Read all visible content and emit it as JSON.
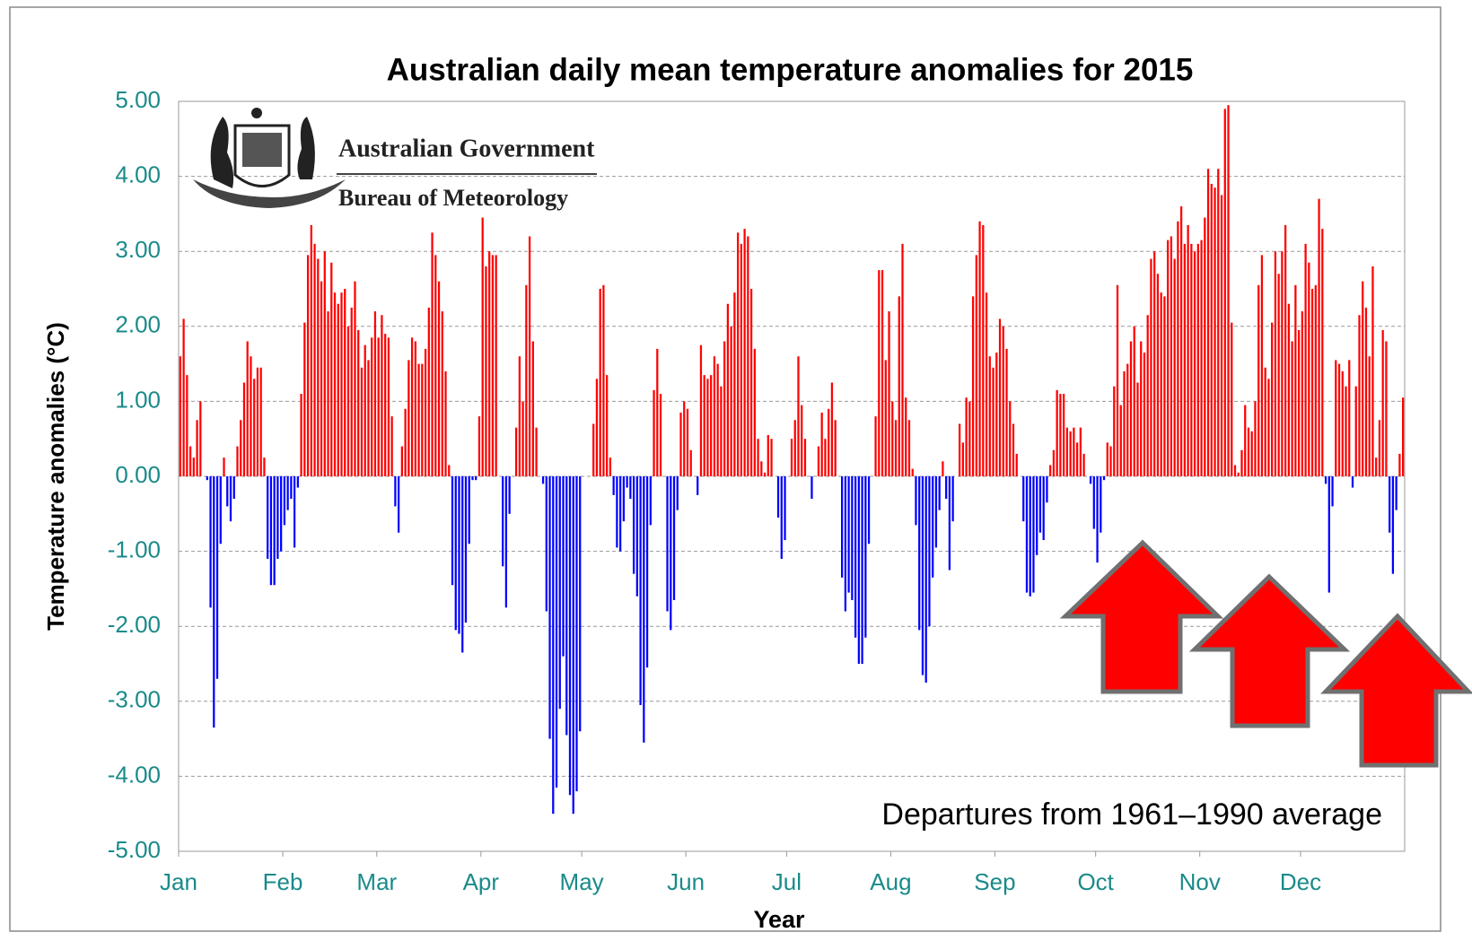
{
  "chart_data": {
    "type": "bar",
    "title": "Australian daily mean temperature anomalies for 2015",
    "ylabel": "Temperature anomalies (°C)",
    "xlabel": "Year",
    "annotation": "Departures from 1961–1990 average",
    "logo_text": [
      "Australian Government",
      "Bureau of Meteorology"
    ],
    "positive_color": "#ff0000",
    "negative_color": "#0000ff",
    "grid": true,
    "xlim": [
      1,
      366
    ],
    "xticks": [
      {
        "value": 1,
        "label": "Jan"
      },
      {
        "value": 32,
        "label": "Feb"
      },
      {
        "value": 60,
        "label": "Mar"
      },
      {
        "value": 91,
        "label": "Apr"
      },
      {
        "value": 121,
        "label": "May"
      },
      {
        "value": 152,
        "label": "Jun"
      },
      {
        "value": 182,
        "label": "Jul"
      },
      {
        "value": 213,
        "label": "Aug"
      },
      {
        "value": 244,
        "label": "Sep"
      },
      {
        "value": 274,
        "label": "Oct"
      },
      {
        "value": 305,
        "label": "Nov"
      },
      {
        "value": 335,
        "label": "Dec"
      }
    ],
    "ylim": [
      -5,
      5
    ],
    "yticks": [
      {
        "value": -5,
        "label": "-5.00"
      },
      {
        "value": -4,
        "label": "-4.00"
      },
      {
        "value": -3,
        "label": "-3.00"
      },
      {
        "value": -2,
        "label": "-2.00"
      },
      {
        "value": -1,
        "label": "-1.00"
      },
      {
        "value": 0,
        "label": "0.00"
      },
      {
        "value": 1,
        "label": "1.00"
      },
      {
        "value": 2,
        "label": "2.00"
      },
      {
        "value": 3,
        "label": "3.00"
      },
      {
        "value": 4,
        "label": "4.00"
      },
      {
        "value": 5,
        "label": "5.00"
      }
    ],
    "x": [
      1,
      2,
      3,
      4,
      5,
      6,
      7,
      8,
      9,
      10,
      11,
      12,
      13,
      14,
      15,
      16,
      17,
      18,
      19,
      20,
      21,
      22,
      23,
      24,
      25,
      26,
      27,
      28,
      29,
      30,
      31,
      32,
      33,
      34,
      35,
      36,
      37,
      38,
      39,
      40,
      41,
      42,
      43,
      44,
      45,
      46,
      47,
      48,
      49,
      50,
      51,
      52,
      53,
      54,
      55,
      56,
      57,
      58,
      59,
      60,
      61,
      62,
      63,
      64,
      65,
      66,
      67,
      68,
      69,
      70,
      71,
      72,
      73,
      74,
      75,
      76,
      77,
      78,
      79,
      80,
      81,
      82,
      83,
      84,
      85,
      86,
      87,
      88,
      89,
      90,
      91,
      92,
      93,
      94,
      95,
      96,
      97,
      98,
      99,
      100,
      101,
      102,
      103,
      104,
      105,
      106,
      107,
      108,
      109,
      110,
      111,
      112,
      113,
      114,
      115,
      116,
      117,
      118,
      119,
      120,
      121,
      122,
      123,
      124,
      125,
      126,
      127,
      128,
      129,
      130,
      131,
      132,
      133,
      134,
      135,
      136,
      137,
      138,
      139,
      140,
      141,
      142,
      143,
      144,
      145,
      146,
      147,
      148,
      149,
      150,
      151,
      152,
      153,
      154,
      155,
      156,
      157,
      158,
      159,
      160,
      161,
      162,
      163,
      164,
      165,
      166,
      167,
      168,
      169,
      170,
      171,
      172,
      173,
      174,
      175,
      176,
      177,
      178,
      179,
      180,
      181,
      182,
      183,
      184,
      185,
      186,
      187,
      188,
      189,
      190,
      191,
      192,
      193,
      194,
      195,
      196,
      197,
      198,
      199,
      200,
      201,
      202,
      203,
      204,
      205,
      206,
      207,
      208,
      209,
      210,
      211,
      212,
      213,
      214,
      215,
      216,
      217,
      218,
      219,
      220,
      221,
      222,
      223,
      224,
      225,
      226,
      227,
      228,
      229,
      230,
      231,
      232,
      233,
      234,
      235,
      236,
      237,
      238,
      239,
      240,
      241,
      242,
      243,
      244,
      245,
      246,
      247,
      248,
      249,
      250,
      251,
      252,
      253,
      254,
      255,
      256,
      257,
      258,
      259,
      260,
      261,
      262,
      263,
      264,
      265,
      266,
      267,
      268,
      269,
      270,
      271,
      272,
      273,
      274,
      275,
      276,
      277,
      278,
      279,
      280,
      281,
      282,
      283,
      284,
      285,
      286,
      287,
      288,
      289,
      290,
      291,
      292,
      293,
      294,
      295,
      296,
      297,
      298,
      299,
      300,
      301,
      302,
      303,
      304,
      305,
      306,
      307,
      308,
      309,
      310,
      311,
      312,
      313,
      314,
      315,
      316,
      317,
      318,
      319,
      320,
      321,
      322,
      323,
      324,
      325,
      326,
      327,
      328,
      329,
      330,
      331,
      332,
      333,
      334,
      335,
      336,
      337,
      338,
      339,
      340,
      341,
      342,
      343,
      344,
      345,
      346,
      347,
      348,
      349,
      350,
      351,
      352,
      353,
      354,
      355,
      356,
      357,
      358,
      359,
      360,
      361,
      362,
      363,
      364,
      365
    ],
    "values": [
      1.6,
      2.1,
      1.35,
      0.4,
      0.25,
      0.75,
      1.0,
      0,
      -0.05,
      -1.75,
      -3.35,
      -2.7,
      -0.9,
      0.25,
      -0.4,
      -0.6,
      -0.3,
      0.4,
      0.75,
      1.25,
      1.8,
      1.6,
      1.3,
      1.45,
      1.45,
      0.25,
      -1.1,
      -1.45,
      -1.45,
      -1.1,
      -1.0,
      -0.65,
      -0.45,
      -0.3,
      -0.95,
      -0.15,
      1.1,
      2.05,
      2.95,
      3.35,
      3.1,
      2.9,
      2.6,
      3.0,
      2.2,
      2.85,
      2.45,
      2.3,
      2.45,
      2.5,
      2.0,
      2.25,
      2.6,
      1.95,
      1.45,
      1.75,
      1.55,
      1.85,
      2.2,
      1.85,
      2.15,
      1.9,
      1.85,
      0.8,
      -0.4,
      -0.75,
      0.4,
      0.9,
      1.55,
      1.85,
      1.8,
      1.5,
      1.5,
      1.7,
      2.25,
      3.25,
      2.95,
      2.6,
      2.2,
      1.4,
      0.15,
      -1.45,
      -2.05,
      -2.1,
      -2.35,
      -1.95,
      -0.9,
      -0.05,
      -0.05,
      0.8,
      3.45,
      2.8,
      3.0,
      2.95,
      2.95,
      0,
      -1.2,
      -1.75,
      -0.5,
      0,
      0.65,
      1.6,
      1.0,
      2.55,
      3.2,
      1.8,
      0.65,
      0,
      -0.1,
      -1.8,
      -3.5,
      -4.5,
      -4.15,
      -3.1,
      -2.4,
      -3.45,
      -4.25,
      -4.5,
      -4.2,
      -3.4,
      0,
      0,
      0,
      0.7,
      1.3,
      2.5,
      2.55,
      1.35,
      0.25,
      -0.25,
      -0.95,
      -1.0,
      -0.6,
      -0.15,
      -0.3,
      -1.3,
      -1.6,
      -3.05,
      -3.55,
      -2.55,
      -0.65,
      1.15,
      1.7,
      1.1,
      0,
      -1.8,
      -2.05,
      -1.65,
      -0.45,
      0.85,
      1.0,
      0.9,
      0.35,
      0,
      -0.25,
      1.75,
      1.35,
      1.3,
      1.35,
      1.6,
      1.5,
      1.2,
      1.8,
      2.3,
      2.0,
      2.45,
      3.25,
      3.1,
      3.3,
      3.2,
      2.5,
      1.7,
      0.5,
      0.2,
      0.05,
      0.55,
      0.5,
      0,
      -0.55,
      -1.1,
      -0.85,
      0,
      0.5,
      0.75,
      1.6,
      0.95,
      0.5,
      0,
      -0.3,
      0,
      0.4,
      0.85,
      0.5,
      0.9,
      1.25,
      0.75,
      0,
      -1.35,
      -1.8,
      -1.55,
      -1.65,
      -2.15,
      -2.5,
      -2.5,
      -2.15,
      -0.9,
      0,
      0.8,
      2.75,
      2.75,
      1.55,
      2.2,
      1.0,
      0.75,
      2.4,
      3.1,
      1.05,
      0.75,
      0.1,
      -0.65,
      -2.05,
      -2.65,
      -2.75,
      -2.0,
      -1.35,
      -0.95,
      -0.45,
      0.2,
      -0.3,
      -1.25,
      -0.6,
      0,
      0.7,
      0.45,
      1.05,
      1.0,
      2.4,
      2.95,
      3.4,
      3.35,
      2.45,
      1.6,
      1.45,
      1.65,
      2.1,
      2.0,
      1.7,
      1.0,
      0.7,
      0.3,
      0,
      -0.6,
      -1.55,
      -1.6,
      -1.55,
      -1.05,
      -0.75,
      -0.85,
      -0.35,
      0.15,
      0.35,
      1.15,
      1.1,
      1.1,
      0.65,
      0.6,
      0.65,
      0.45,
      0.65,
      0.3,
      0,
      -0.1,
      -0.7,
      -1.15,
      -0.75,
      -0.05,
      0.45,
      0.4,
      1.2,
      2.55,
      0.95,
      1.4,
      1.5,
      1.8,
      2.0,
      1.25,
      1.8,
      1.65,
      2.15,
      2.9,
      3.0,
      2.7,
      2.45,
      2.4,
      3.15,
      3.2,
      2.9,
      3.4,
      3.6,
      3.1,
      3.35,
      3.1,
      3.0,
      3.1,
      3.15,
      3.45,
      4.1,
      3.9,
      3.85,
      4.1,
      3.75,
      4.9,
      4.95,
      2.05,
      0.15,
      0.05,
      0.35,
      0.95,
      0.65,
      0.6,
      1.0,
      2.55,
      2.95,
      1.45,
      1.3,
      2.05,
      3.0,
      2.7,
      3.0,
      3.35,
      2.3,
      1.8,
      2.55,
      1.95,
      2.2,
      3.1,
      2.85,
      2.5,
      2.55,
      3.7,
      3.3,
      -0.1,
      -1.55,
      -0.4,
      1.55,
      1.5,
      1.4,
      1.2,
      1.55,
      -0.15,
      1.2,
      2.15,
      2.6,
      2.25,
      1.6,
      2.8,
      0.25,
      0.75,
      1.95,
      1.8,
      -0.75,
      -1.3,
      -0.45,
      0.3,
      1.05
    ]
  }
}
